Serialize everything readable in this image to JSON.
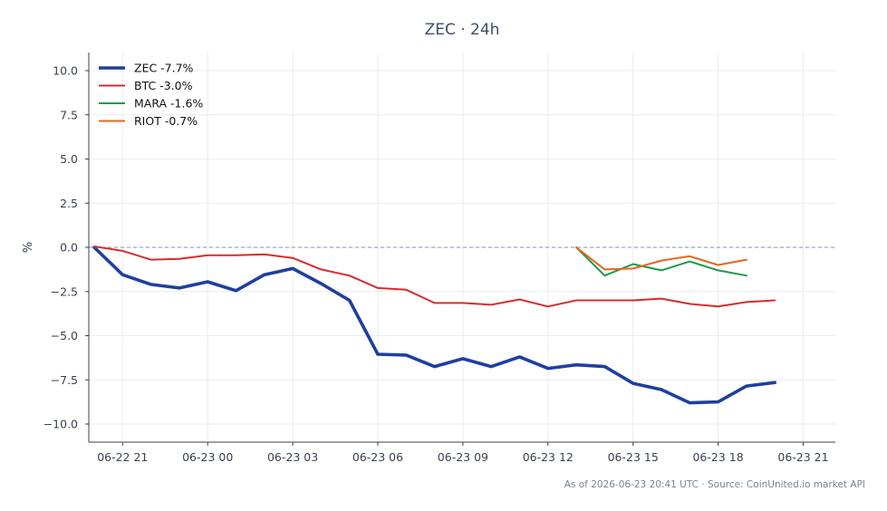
{
  "chart_data": {
    "type": "line",
    "title": "ZEC · 24h",
    "xlabel": "",
    "ylabel": "%",
    "x_ticks": [
      "06-22 21",
      "06-23 00",
      "06-23 03",
      "06-23 06",
      "06-23 09",
      "06-23 12",
      "06-23 15",
      "06-23 18",
      "06-23 21"
    ],
    "y_ticks": [
      "10.0",
      "7.5",
      "5.0",
      "2.5",
      "0.0",
      "−2.5",
      "−5.0",
      "−7.5",
      "−10.0"
    ],
    "ylim": [
      -11,
      11
    ],
    "grid": true,
    "zero_line": true,
    "legend_position": "top-left",
    "series": [
      {
        "name": "ZEC -7.7%",
        "color": "#1f3fa0",
        "x": [
          "2026-06-22 20:00",
          "2026-06-22 21:00",
          "2026-06-22 22:00",
          "2026-06-22 23:00",
          "2026-06-23 00:00",
          "2026-06-23 01:00",
          "2026-06-23 02:00",
          "2026-06-23 03:00",
          "2026-06-23 04:00",
          "2026-06-23 05:00",
          "2026-06-23 06:00",
          "2026-06-23 07:00",
          "2026-06-23 08:00",
          "2026-06-23 09:00",
          "2026-06-23 10:00",
          "2026-06-23 11:00",
          "2026-06-23 12:00",
          "2026-06-23 13:00",
          "2026-06-23 14:00",
          "2026-06-23 15:00",
          "2026-06-23 16:00",
          "2026-06-23 17:00",
          "2026-06-23 18:00",
          "2026-06-23 19:00",
          "2026-06-23 20:00"
        ],
        "values": [
          0.0,
          -1.55,
          -2.1,
          -2.3,
          -1.95,
          -2.45,
          -1.55,
          -1.2,
          -2.05,
          -3.0,
          -6.05,
          -6.1,
          -6.75,
          -6.3,
          -6.75,
          -6.2,
          -6.85,
          -6.65,
          -6.75,
          -7.7,
          -8.05,
          -8.8,
          -8.75,
          -7.85,
          -7.65
        ]
      },
      {
        "name": "BTC -3.0%",
        "color": "#d62c2c",
        "x": [
          "2026-06-22 20:00",
          "2026-06-22 21:00",
          "2026-06-22 22:00",
          "2026-06-22 23:00",
          "2026-06-23 00:00",
          "2026-06-23 01:00",
          "2026-06-23 02:00",
          "2026-06-23 03:00",
          "2026-06-23 04:00",
          "2026-06-23 05:00",
          "2026-06-23 06:00",
          "2026-06-23 07:00",
          "2026-06-23 08:00",
          "2026-06-23 09:00",
          "2026-06-23 10:00",
          "2026-06-23 11:00",
          "2026-06-23 12:00",
          "2026-06-23 13:00",
          "2026-06-23 14:00",
          "2026-06-23 15:00",
          "2026-06-23 16:00",
          "2026-06-23 17:00",
          "2026-06-23 18:00",
          "2026-06-23 19:00",
          "2026-06-23 20:00"
        ],
        "values": [
          0.05,
          -0.2,
          -0.7,
          -0.65,
          -0.45,
          -0.45,
          -0.4,
          -0.6,
          -1.25,
          -1.6,
          -2.3,
          -2.4,
          -3.15,
          -3.15,
          -3.25,
          -2.95,
          -3.35,
          -3.0,
          -3.0,
          -3.0,
          -2.9,
          -3.2,
          -3.35,
          -3.1,
          -3.0
        ]
      },
      {
        "name": "MARA -1.6%",
        "color": "#1a9a4a",
        "x": [
          "2026-06-23 13:00",
          "2026-06-23 14:00",
          "2026-06-23 15:00",
          "2026-06-23 16:00",
          "2026-06-23 17:00",
          "2026-06-23 18:00",
          "2026-06-23 19:00"
        ],
        "values": [
          0.0,
          -1.6,
          -0.95,
          -1.3,
          -0.8,
          -1.3,
          -1.6
        ]
      },
      {
        "name": "RIOT -0.7%",
        "color": "#e8661c",
        "x": [
          "2026-06-23 13:00",
          "2026-06-23 14:00",
          "2026-06-23 15:00",
          "2026-06-23 16:00",
          "2026-06-23 17:00",
          "2026-06-23 18:00",
          "2026-06-23 19:00"
        ],
        "values": [
          0.0,
          -1.25,
          -1.2,
          -0.75,
          -0.5,
          -1.0,
          -0.7
        ]
      }
    ],
    "footer": "As of 2026-06-23 20:41 UTC · Source: CoinUnited.io market API"
  }
}
